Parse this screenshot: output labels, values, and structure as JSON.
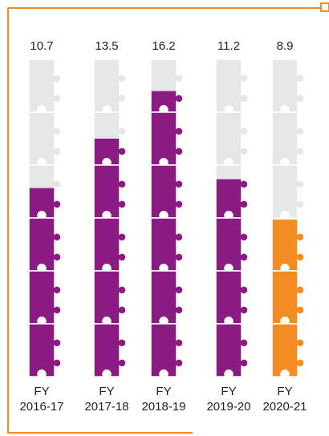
{
  "chart_data": {
    "type": "bar",
    "categories": [
      [
        "FY",
        "2016-17"
      ],
      [
        "FY",
        "2017-18"
      ],
      [
        "FY",
        "2018-19"
      ],
      [
        "FY",
        "2019-20"
      ],
      [
        "FY",
        "2020-21"
      ]
    ],
    "values": [
      10.7,
      13.5,
      16.2,
      11.2,
      8.9
    ],
    "value_labels": [
      "10.7",
      "13.5",
      "16.2",
      "11.2",
      "8.9"
    ],
    "ylim": [
      0,
      18
    ],
    "segments_per_bar": 6,
    "grid": false,
    "legend": "none",
    "colors": {
      "filled": "#8B1A82",
      "highlight": "#F28C23",
      "empty": "#E5E6E8",
      "frame": "#F28C23",
      "text": "#222222"
    },
    "highlight_index": 4
  }
}
